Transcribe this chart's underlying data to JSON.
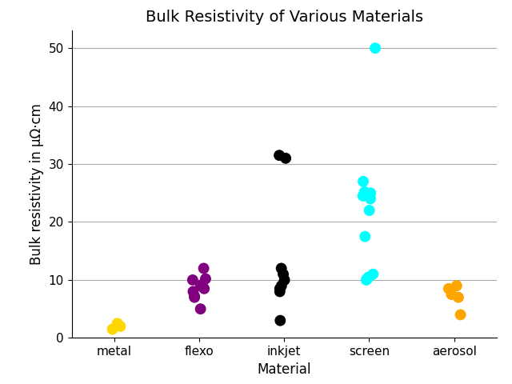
{
  "title": "Bulk Resistivity of Various Materials",
  "xlabel": "Material",
  "ylabel": "Bulk resistivity in μΩ·cm",
  "categories": [
    "metal",
    "flexo",
    "inkjet",
    "screen",
    "aerosol"
  ],
  "data": {
    "metal": [
      1.5,
      2.0,
      2.5
    ],
    "flexo": [
      5.0,
      7.0,
      7.2,
      8.0,
      8.5,
      9.0,
      9.2,
      10.0,
      10.2,
      12.0
    ],
    "inkjet": [
      3.0,
      8.0,
      8.5,
      9.0,
      10.0,
      11.0,
      12.0,
      31.0,
      31.5
    ],
    "screen": [
      10.0,
      10.2,
      10.5,
      11.0,
      17.5,
      22.0,
      24.0,
      24.5,
      25.0,
      25.2,
      27.0,
      50.0
    ],
    "aerosol": [
      4.0,
      7.0,
      7.5,
      8.5,
      9.0
    ]
  },
  "colors": {
    "metal": "#FFD700",
    "flexo": "#800080",
    "inkjet": "#000000",
    "screen": "#00FFFF",
    "aerosol": "#FFA500"
  },
  "ylim": [
    0,
    53
  ],
  "yticks": [
    0,
    10,
    20,
    30,
    40,
    50
  ],
  "marker_size": 100,
  "jitter_seed": 42,
  "jitter_amount": 0.08,
  "title_fontsize": 14,
  "label_fontsize": 12,
  "tick_fontsize": 11,
  "bg_color": "#FFFFFF",
  "grid_color": "#AAAAAA"
}
